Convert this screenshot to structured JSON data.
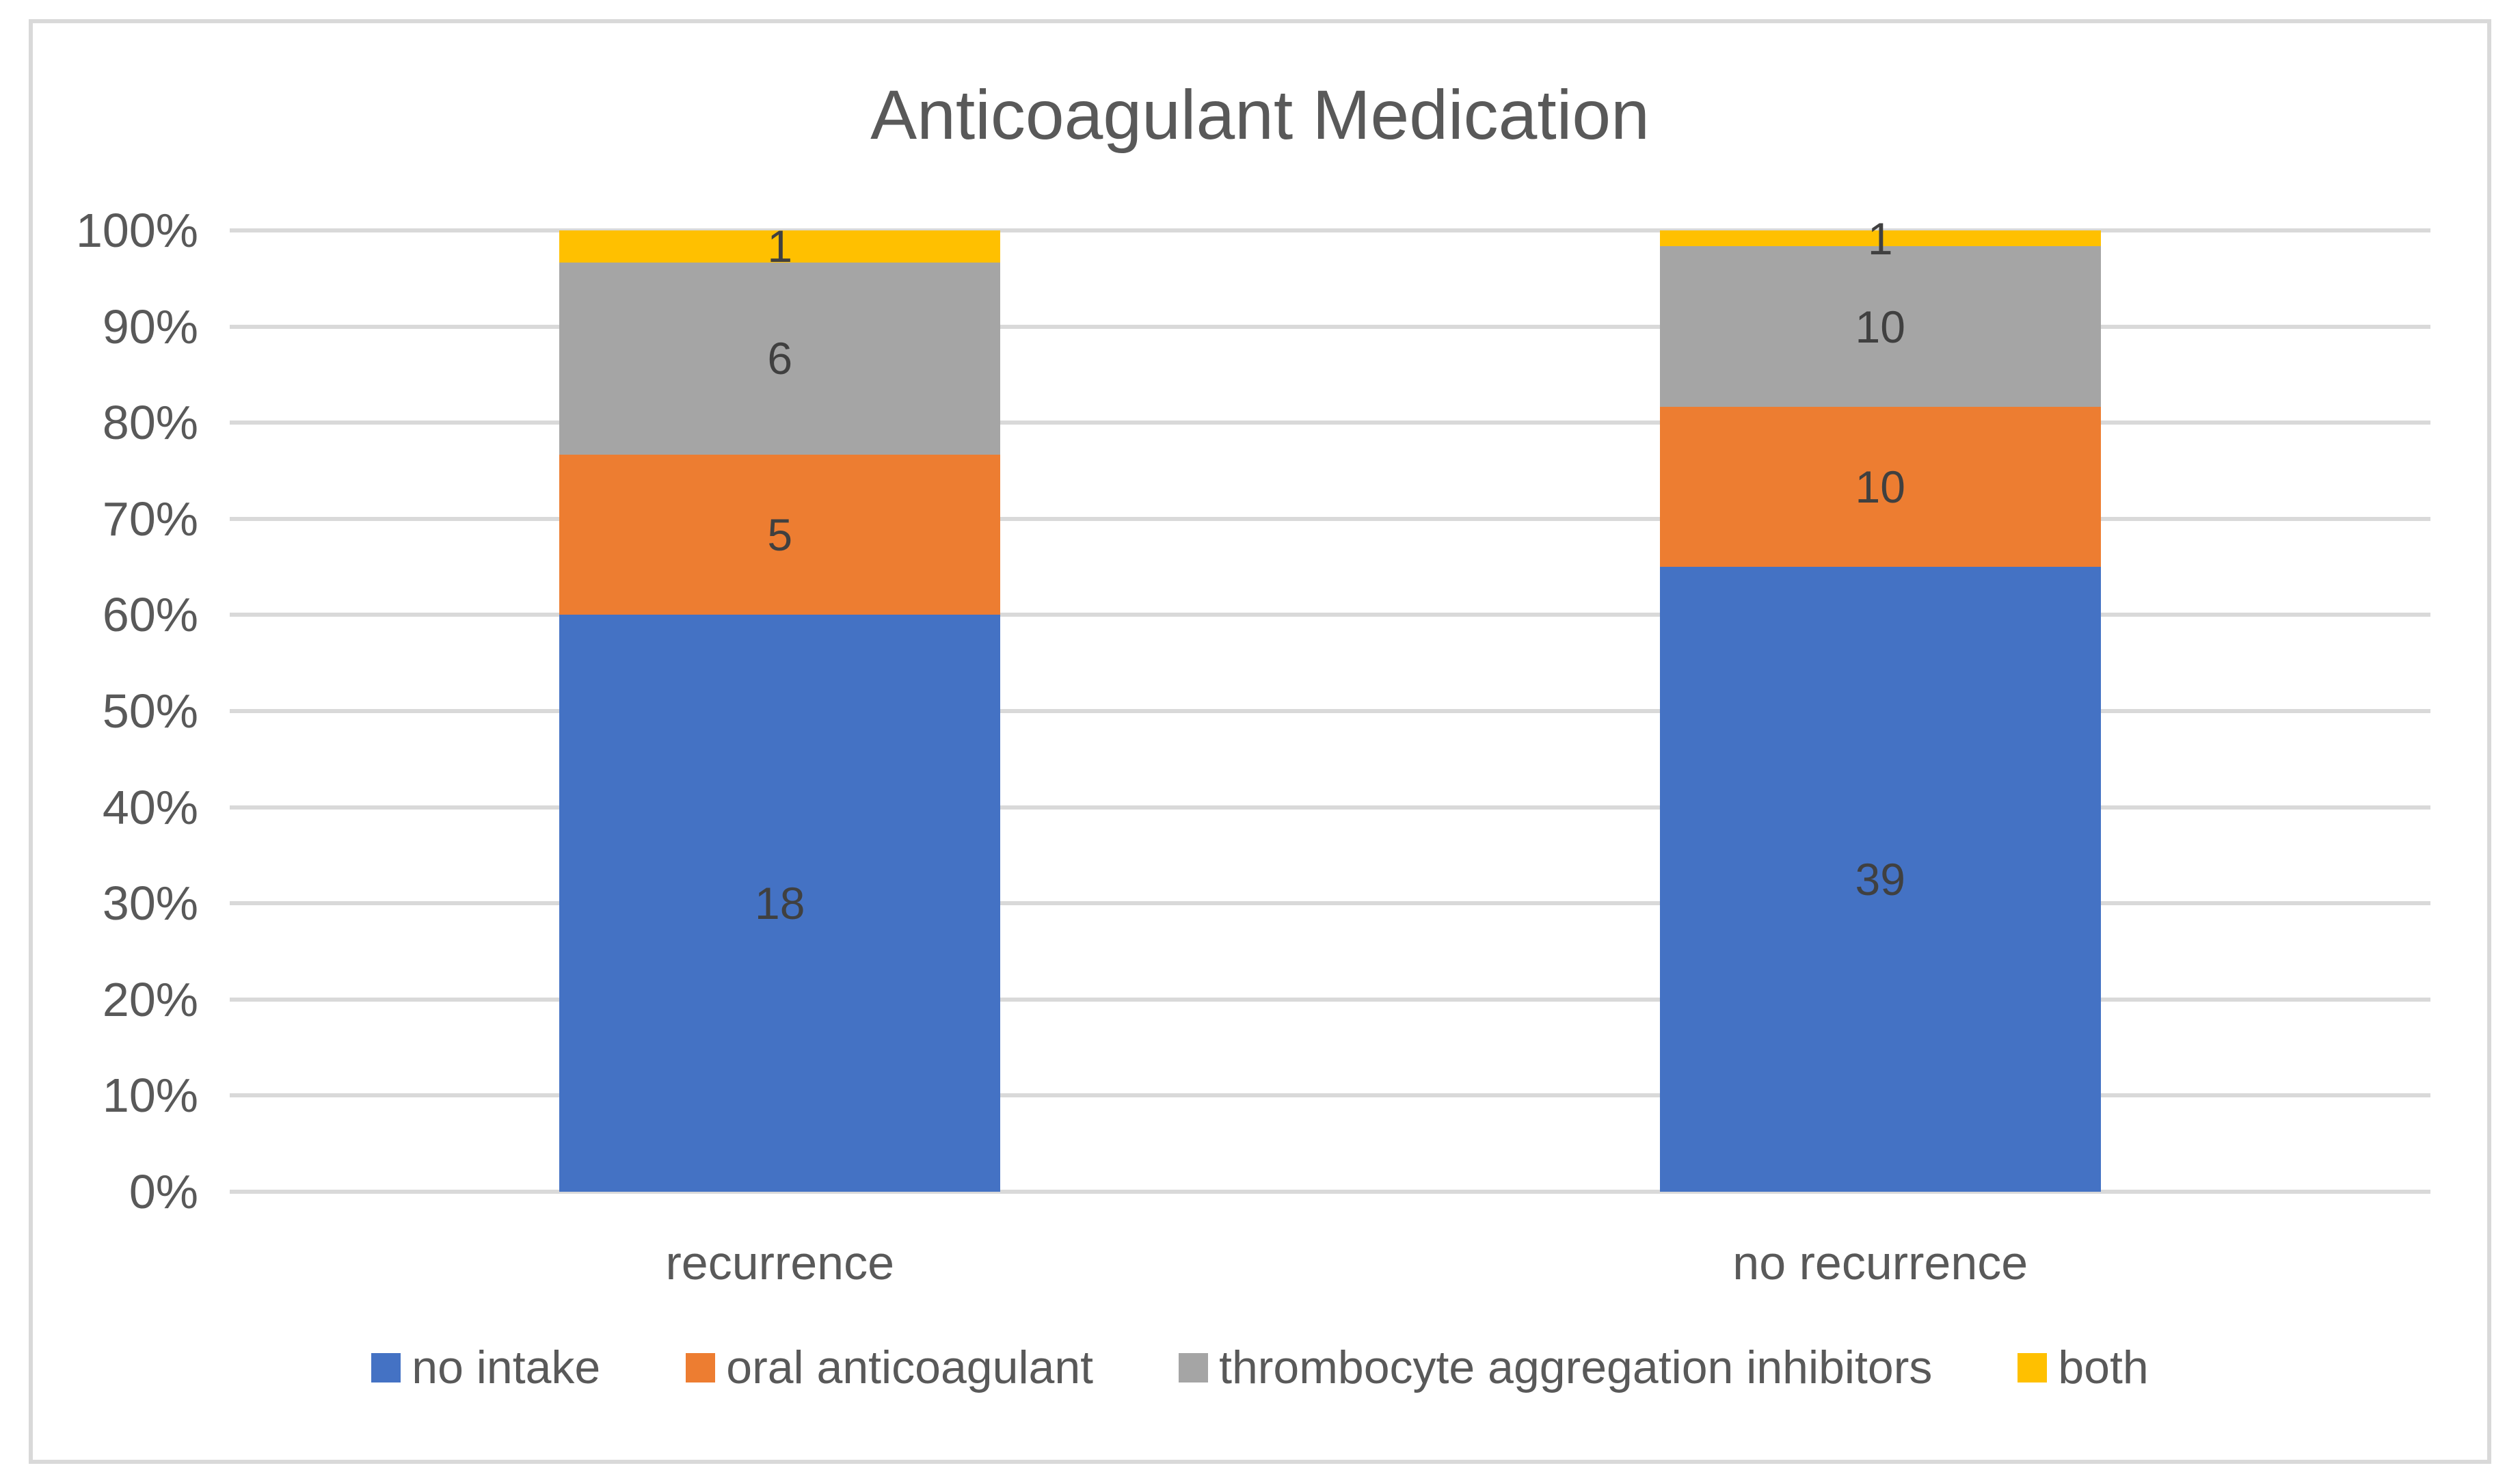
{
  "chart_data": {
    "type": "bar",
    "subtype": "stacked-100-percent-column",
    "title": "Anticoagulant Medication",
    "categories": [
      "recurrence",
      "no recurrence"
    ],
    "series": [
      {
        "name": "no intake",
        "color": "#4472C4",
        "values": [
          18,
          39
        ]
      },
      {
        "name": "oral anticoagulant",
        "color": "#ED7D31",
        "values": [
          5,
          10
        ]
      },
      {
        "name": "thrombocyte aggregation inhibitors",
        "color": "#A5A5A5",
        "values": [
          6,
          10
        ]
      },
      {
        "name": "both",
        "color": "#FFC000",
        "values": [
          1,
          1
        ]
      }
    ],
    "data_labels_shown": true,
    "xlabel": "",
    "ylabel": "",
    "ylim": [
      0,
      100
    ],
    "y_tick_values": [
      0,
      10,
      20,
      30,
      40,
      50,
      60,
      70,
      80,
      90,
      100
    ],
    "y_tick_labels": [
      "0%",
      "10%",
      "20%",
      "30%",
      "40%",
      "50%",
      "60%",
      "70%",
      "80%",
      "90%",
      "100%"
    ],
    "grid": "horizontal",
    "legend_position": "bottom"
  },
  "colors": {
    "gridline": "#D9D9D9",
    "frame_border": "#D9D9D9",
    "axis_text": "#595959",
    "title_text": "#595959",
    "data_label_text": "#404040",
    "background": "#FFFFFF"
  }
}
